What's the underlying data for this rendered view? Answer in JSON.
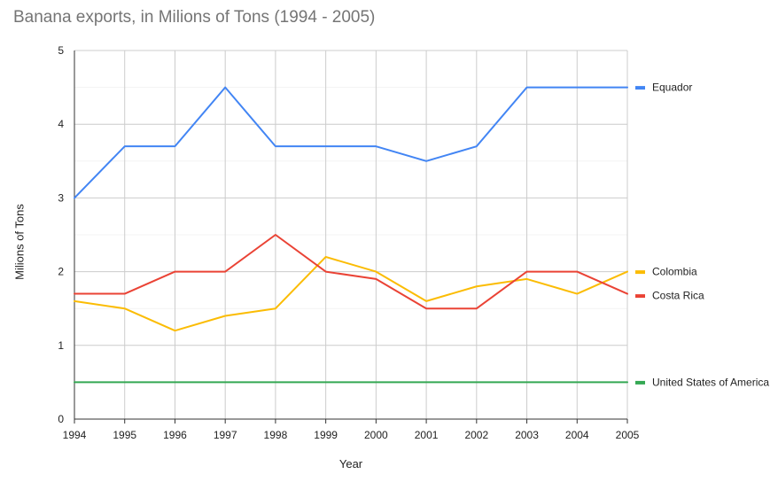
{
  "chart_data": {
    "type": "line",
    "title": "Banana exports, in Milions of Tons (1994 - 2005)",
    "xlabel": "Year",
    "ylabel": "Milions of Tons",
    "categories": [
      "1994",
      "1995",
      "1996",
      "1997",
      "1998",
      "1999",
      "2000",
      "2001",
      "2002",
      "2003",
      "2004",
      "2005"
    ],
    "ylim": [
      0,
      5
    ],
    "yticks": [
      "0",
      "1",
      "2",
      "3",
      "4",
      "5"
    ],
    "grid": true,
    "legend_position": "right",
    "series": [
      {
        "name": "Equador",
        "color": "#4285f4",
        "values": [
          3.0,
          3.7,
          3.7,
          4.5,
          3.7,
          3.7,
          3.7,
          3.5,
          3.7,
          4.5,
          4.5,
          4.5
        ]
      },
      {
        "name": "Colombia",
        "color": "#fbbc04",
        "values": [
          1.6,
          1.5,
          1.2,
          1.4,
          1.5,
          2.2,
          2.0,
          1.6,
          1.8,
          1.9,
          1.7,
          2.0
        ]
      },
      {
        "name": "Costa Rica",
        "color": "#ea4335",
        "values": [
          1.7,
          1.7,
          2.0,
          2.0,
          2.5,
          2.0,
          1.9,
          1.5,
          1.5,
          2.0,
          2.0,
          1.7
        ]
      },
      {
        "name": "United States of America",
        "color": "#34a853",
        "values": [
          0.5,
          0.5,
          0.5,
          0.5,
          0.5,
          0.5,
          0.5,
          0.5,
          0.5,
          0.5,
          0.5,
          0.5
        ]
      }
    ]
  }
}
